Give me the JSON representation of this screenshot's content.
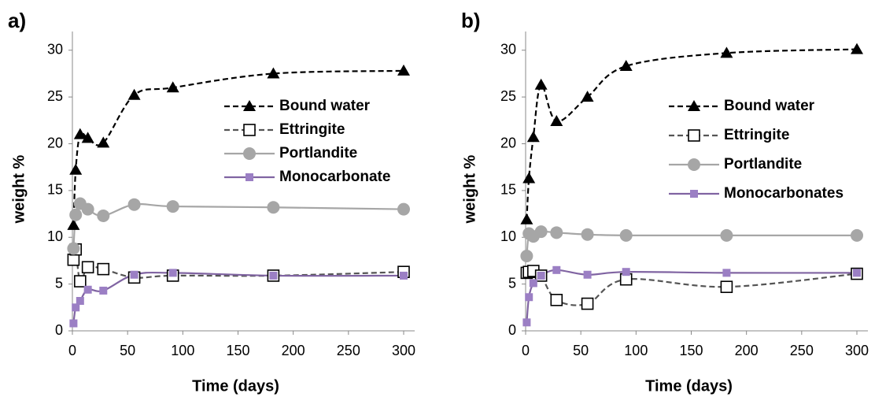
{
  "chart_data": [
    {
      "type": "line",
      "title": "a)",
      "x_label": "Time (days)",
      "y_label": "weight %",
      "x": [
        1,
        3,
        7,
        14,
        28,
        56,
        91,
        182,
        300
      ],
      "xlim": [
        0,
        310
      ],
      "xticks": [
        0,
        50,
        100,
        150,
        200,
        250,
        300
      ],
      "ylim": [
        0,
        32
      ],
      "yticks": [
        0,
        5,
        10,
        15,
        20,
        25,
        30
      ],
      "legend": "right",
      "series": [
        {
          "name": "Bound water",
          "color": "#000000",
          "marker": "triangle",
          "dashed": true,
          "values": [
            11.3,
            17.2,
            21.0,
            20.6,
            20.1,
            25.2,
            26.0,
            27.5,
            27.8
          ]
        },
        {
          "name": "Ettringite",
          "color": "#555555",
          "marker": "open-square",
          "dashed": true,
          "values": [
            7.6,
            8.7,
            5.3,
            6.8,
            6.6,
            5.7,
            5.9,
            5.9,
            6.3
          ]
        },
        {
          "name": "Portlandite",
          "color": "#a6a6a6",
          "marker": "circle",
          "dashed": false,
          "values": [
            8.8,
            12.4,
            13.6,
            13.0,
            12.3,
            13.5,
            13.3,
            13.2,
            13.0
          ]
        },
        {
          "name": "Monocarbonate",
          "color": "#8064a2",
          "marker": "square",
          "dashed": false,
          "values": [
            0.8,
            2.5,
            3.2,
            4.4,
            4.3,
            6.0,
            6.2,
            5.9,
            5.9
          ]
        }
      ]
    },
    {
      "type": "line",
      "title": "b)",
      "x_label": "Time (days)",
      "y_label": "weight %",
      "x": [
        1,
        3,
        7,
        14,
        28,
        56,
        91,
        182,
        300
      ],
      "xlim": [
        0,
        310
      ],
      "xticks": [
        0,
        50,
        100,
        150,
        200,
        250,
        300
      ],
      "ylim": [
        0,
        32
      ],
      "yticks": [
        0,
        5,
        10,
        15,
        20,
        25,
        30
      ],
      "legend": "right",
      "series": [
        {
          "name": "Bound water",
          "color": "#000000",
          "marker": "triangle",
          "dashed": true,
          "values": [
            11.9,
            16.3,
            20.7,
            26.3,
            22.4,
            25.0,
            28.3,
            29.7,
            30.1
          ]
        },
        {
          "name": "Ettringite",
          "color": "#555555",
          "marker": "open-square",
          "dashed": true,
          "values": [
            6.2,
            6.3,
            6.4,
            5.9,
            3.3,
            2.9,
            5.5,
            4.7,
            6.1
          ]
        },
        {
          "name": "Portlandite",
          "color": "#a6a6a6",
          "marker": "circle",
          "dashed": false,
          "values": [
            8.0,
            10.4,
            10.1,
            10.6,
            10.5,
            10.3,
            10.2,
            10.2,
            10.2
          ]
        },
        {
          "name": "Monocarbonates",
          "color": "#8064a2",
          "marker": "square",
          "dashed": false,
          "values": [
            0.9,
            3.6,
            5.1,
            5.9,
            6.5,
            6.0,
            6.3,
            6.2,
            6.2
          ]
        }
      ]
    }
  ]
}
